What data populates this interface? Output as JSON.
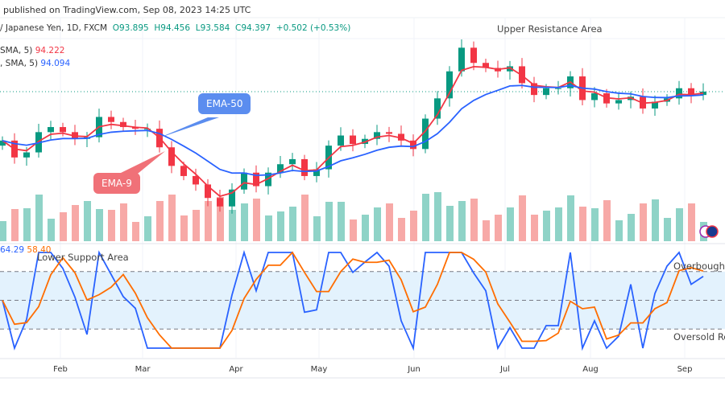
{
  "header": {
    "published": "published on TradingView.com, Sep 08, 2023 14:25 UTC"
  },
  "legend": {
    "symbol": "/ Japanese Yen, 1D, FXCM",
    "open": "O93.895",
    "high": "H94.456",
    "low": "L93.584",
    "close": "C94.397",
    "change": "+0.502 (+0.53%)"
  },
  "indicators": {
    "ema9_label": "SMA, 5)",
    "ema9_value": "94.222",
    "ema50_label": ", SMA, 5)",
    "ema50_value": "94.094",
    "stoch_k": "64.29",
    "stoch_d": "58.40"
  },
  "annotations": {
    "upper": "Upper Resistance Area",
    "lower": "Lower Support Area",
    "overbought": "Overbought",
    "oversold": "Oversold Reg",
    "ema50": "EMA-50",
    "ema9": "EMA-9"
  },
  "colors": {
    "up": "#089981",
    "down": "#f23645",
    "ema9": "#f23645",
    "ema50": "#2962ff",
    "k": "#2962ff",
    "d": "#ff6d00",
    "band": "#e3f2fd"
  },
  "chart_data": {
    "type": "candlestick",
    "x_ticks": [
      "Feb",
      "Mar",
      "Apr",
      "May",
      "Jun",
      "Jul",
      "Aug",
      "Sep"
    ],
    "closes": [
      91.5,
      90.5,
      90.8,
      92.0,
      92.3,
      92.0,
      91.6,
      91.7,
      92.9,
      92.6,
      92.3,
      92.2,
      92.2,
      91.1,
      90.0,
      89.4,
      88.9,
      88.1,
      87.6,
      88.6,
      89.6,
      88.8,
      89.6,
      90.1,
      90.4,
      89.4,
      89.8,
      91.2,
      91.8,
      91.3,
      91.6,
      92.0,
      91.9,
      91.5,
      91.0,
      92.8,
      94.0,
      95.6,
      97.0,
      96.1,
      95.8,
      95.6,
      95.9,
      94.9,
      94.2,
      94.6,
      94.6,
      95.3,
      93.9,
      94.3,
      93.7,
      93.9,
      94.1,
      93.4,
      93.8,
      94.0,
      94.6,
      94.2,
      94.4
    ],
    "last_price": 94.397,
    "oscillator_levels": [
      80,
      50,
      20
    ],
    "grid": true
  }
}
